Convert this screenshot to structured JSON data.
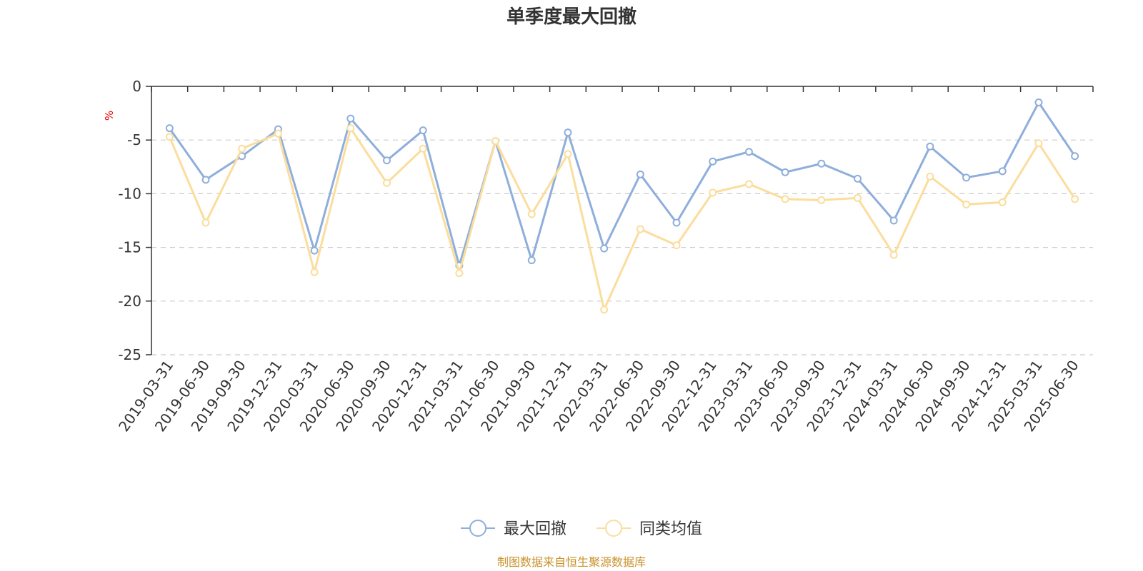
{
  "chart_data": {
    "type": "line",
    "title": "单季度最大回撤",
    "ylabel": "%",
    "xlabel": "",
    "ylim": [
      -25,
      0
    ],
    "yticks": [
      0,
      -5,
      -10,
      -15,
      -20,
      -25
    ],
    "grid": true,
    "legend_position": "bottom",
    "categories": [
      "2019-03-31",
      "2019-06-30",
      "2019-09-30",
      "2019-12-31",
      "2020-03-31",
      "2020-06-30",
      "2020-09-30",
      "2020-12-31",
      "2021-03-31",
      "2021-06-30",
      "2021-09-30",
      "2021-12-31",
      "2022-03-31",
      "2022-06-30",
      "2022-09-30",
      "2022-12-31",
      "2023-03-31",
      "2023-06-30",
      "2023-09-30",
      "2023-12-31",
      "2024-03-31",
      "2024-06-30",
      "2024-09-30",
      "2024-12-31",
      "2025-03-31",
      "2025-06-30"
    ],
    "series": [
      {
        "name": "最大回撤",
        "color": "#8eaedb",
        "values": [
          -3.9,
          -8.7,
          -6.5,
          -4.0,
          -15.3,
          -3.0,
          -6.9,
          -4.1,
          -16.7,
          -5.1,
          -16.2,
          -4.3,
          -15.1,
          -8.2,
          -12.7,
          -7.0,
          -6.1,
          -8.0,
          -7.2,
          -8.6,
          -12.5,
          -5.6,
          -8.5,
          -7.9,
          -1.5,
          -6.5
        ]
      },
      {
        "name": "同类均值",
        "color": "#fbdd9c",
        "values": [
          -4.7,
          -12.7,
          -5.8,
          -4.4,
          -17.3,
          -3.9,
          -9.0,
          -5.8,
          -17.4,
          -5.1,
          -11.9,
          -6.3,
          -20.8,
          -13.3,
          -14.8,
          -9.9,
          -9.1,
          -10.5,
          -10.6,
          -10.4,
          -15.7,
          -8.4,
          -11.0,
          -10.8,
          -5.3,
          -10.5
        ]
      }
    ]
  },
  "footer": {
    "source": "制图数据来自恒生聚源数据库"
  }
}
